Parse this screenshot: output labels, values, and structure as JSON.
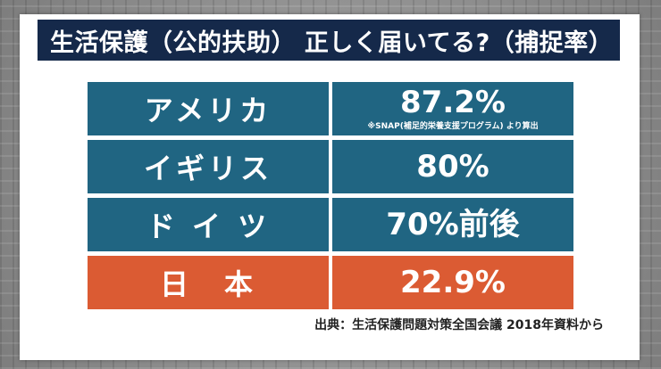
{
  "title": "生活保護（公的扶助） 正しく届いてる?（捕捉率）",
  "rows": [
    {
      "country": "アメリカ",
      "rate": "87.2%",
      "note": "※SNAP(補足的栄養支援プログラム) より算出",
      "color": "#206582"
    },
    {
      "country": "イギリス",
      "rate": "80%",
      "note": "",
      "color": "#206582"
    },
    {
      "country": "ド イ ツ",
      "rate": "70%前後",
      "note": "",
      "color": "#206582"
    },
    {
      "country": "日　本",
      "rate": "22.9%",
      "note": "",
      "color": "#db5b33"
    }
  ],
  "source": "出典：生活保護問題対策全国会議 2018年資料から",
  "colors": {
    "title_bg": "#15294a",
    "row_blue": "#206582",
    "row_orange": "#db5b33"
  }
}
